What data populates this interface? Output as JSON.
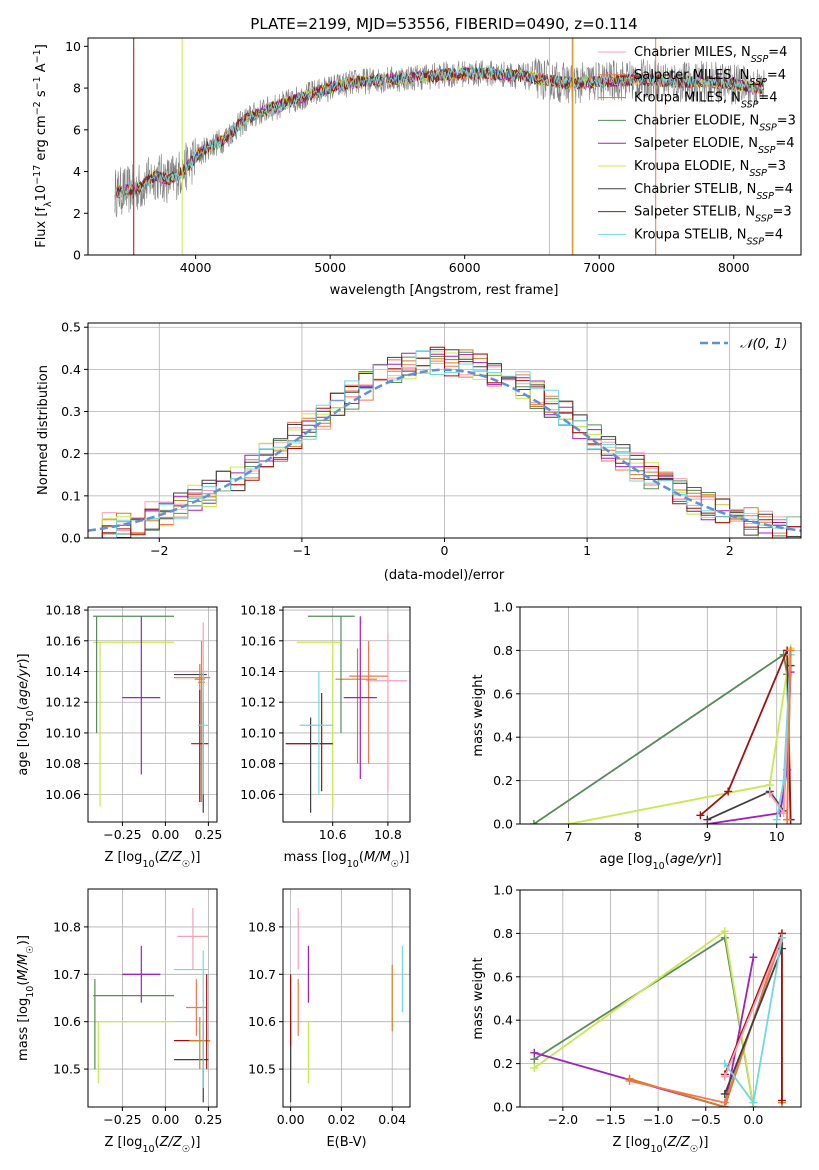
{
  "colors": {
    "chabrier_miles": "#f8a0b8",
    "salpeter_miles": "#f07850",
    "kroupa_miles": "#d08020",
    "chabrier_elodie": "#5a8a5a",
    "salpeter_elodie": "#a020c0",
    "kroupa_elodie": "#c8e850",
    "chabrier_stelib": "#404040",
    "salpeter_stelib": "#a01010",
    "kroupa_stelib": "#70d8e0",
    "gaussian": "#6090d8",
    "data": "#7f7f7f"
  },
  "chart_data": [
    {
      "type": "line",
      "title": "PLATE=2199, MJD=53556, FIBERID=0490, z=0.114",
      "xlabel": "wavelength [Angstrom, rest frame]",
      "ylabel": "Flux [f_λ 10^-17 erg cm^-2 s^-1 A^-1]",
      "xlim": [
        3200,
        8500
      ],
      "ylim": [
        0,
        10.4
      ],
      "xticks": [
        "4000",
        "5000",
        "6000",
        "7000",
        "8000"
      ],
      "yticks": [
        "0",
        "2",
        "4",
        "6",
        "8",
        "10"
      ],
      "grid": false,
      "legend_position": "upper-right",
      "series": [
        {
          "name": "Chabrier MILES, N_SSP=4",
          "color_key": "chabrier_miles"
        },
        {
          "name": "Salpeter MILES, N_SSP=4",
          "color_key": "salpeter_miles"
        },
        {
          "name": "Kroupa MILES, N_SSP=4",
          "color_key": "kroupa_miles"
        },
        {
          "name": "Chabrier ELODIE, N_SSP=3",
          "color_key": "chabrier_elodie"
        },
        {
          "name": "Salpeter ELODIE, N_SSP=4",
          "color_key": "salpeter_elodie"
        },
        {
          "name": "Kroupa ELODIE, N_SSP=3",
          "color_key": "kroupa_elodie"
        },
        {
          "name": "Chabrier STELIB, N_SSP=4",
          "color_key": "chabrier_stelib"
        },
        {
          "name": "Salpeter STELIB, N_SSP=3",
          "color_key": "salpeter_stelib"
        },
        {
          "name": "Kroupa STELIB, N_SSP=4",
          "color_key": "kroupa_stelib"
        }
      ],
      "continuum_wavelength": [
        3400,
        3500,
        3600,
        3700,
        3800,
        3900,
        4000,
        4100,
        4200,
        4300,
        4400,
        4500,
        4600,
        4800,
        5000,
        5200,
        5400,
        5600,
        5800,
        6000,
        6200,
        6400,
        6600,
        6800,
        7000,
        7200,
        7400,
        7600,
        7800,
        8000,
        8200
      ],
      "continuum_flux": [
        3.0,
        3.1,
        3.3,
        3.8,
        3.6,
        4.0,
        4.7,
        5.2,
        5.5,
        6.1,
        6.6,
        6.9,
        7.1,
        7.6,
        8.0,
        8.3,
        8.4,
        8.5,
        8.6,
        8.7,
        8.7,
        8.6,
        8.4,
        8.2,
        8.3,
        8.4,
        8.4,
        8.3,
        8.3,
        8.2,
        8.0
      ]
    },
    {
      "type": "line",
      "xlabel": "(data-model)/error",
      "ylabel": "Normed distribution",
      "xlim": [
        -2.5,
        2.5
      ],
      "ylim": [
        0,
        0.51
      ],
      "xticks": [
        "−2",
        "−1",
        "0",
        "1",
        "2"
      ],
      "yticks": [
        "0.0",
        "0.1",
        "0.2",
        "0.3",
        "0.4",
        "0.5"
      ],
      "grid": true,
      "legend_position": "upper-right",
      "gaussian_label": "𝒩(0, 1)",
      "histogram_bin_width": 0.1
    },
    {
      "type": "scatter",
      "xlabel": "Z [log10(Z/Z☉)]",
      "ylabel": "age [log10(age/yr)]",
      "xlim": [
        -0.45,
        0.3
      ],
      "ylim": [
        10.042,
        10.182
      ],
      "xticks": [
        "−0.25",
        "0.00",
        "0.25"
      ],
      "yticks": [
        "10.06",
        "10.08",
        "10.10",
        "10.12",
        "10.14",
        "10.16",
        "10.18"
      ],
      "grid": true,
      "points": [
        {
          "key": "chabrier_miles",
          "x": 0.22,
          "xerr": 0.0,
          "y": 10.14,
          "ylo": 10.096,
          "yhi": 10.172
        },
        {
          "key": "salpeter_miles",
          "x": 0.21,
          "xerr": 0.02,
          "y": 10.133,
          "ylo": 10.055,
          "yhi": 10.16
        },
        {
          "key": "kroupa_miles",
          "x": 0.2,
          "xerr": 0.03,
          "y": 10.135,
          "ylo": 10.055,
          "yhi": 10.145
        },
        {
          "key": "chabrier_elodie",
          "x": -0.4,
          "xerr": 0.0,
          "y": 10.176,
          "ylo": 10.1,
          "yhi": 10.176
        },
        {
          "key": "salpeter_elodie",
          "x": -0.14,
          "xerr": 0.11,
          "y": 10.123,
          "ylo": 10.073,
          "yhi": 10.176
        },
        {
          "key": "kroupa_elodie",
          "x": -0.38,
          "xerr": 0.0,
          "y": 10.159,
          "ylo": 10.052,
          "yhi": 10.159
        },
        {
          "key": "chabrier_stelib",
          "x": 0.22,
          "xerr": 0.0,
          "y": 10.12,
          "ylo": 10.048,
          "yhi": 10.12
        },
        {
          "key": "salpeter_stelib",
          "x": 0.2,
          "xerr": 0.05,
          "y": 10.093,
          "ylo": 10.055,
          "yhi": 10.128
        },
        {
          "key": "kroupa_stelib",
          "x": 0.22,
          "xerr": 0.03,
          "y": 10.105,
          "ylo": 10.06,
          "yhi": 10.14
        }
      ],
      "hlines": [
        {
          "key": "chabrier_elodie",
          "y": 10.176,
          "x0": -0.42,
          "x1": 0.05
        },
        {
          "key": "kroupa_elodie",
          "y": 10.159,
          "x0": -0.42,
          "x1": 0.05
        },
        {
          "key": "chabrier_miles",
          "y": 10.14,
          "x0": 0.05,
          "x1": 0.25
        },
        {
          "key": "salpeter_miles",
          "y": 10.136,
          "x0": 0.05,
          "x1": 0.26
        },
        {
          "key": "chabrier_stelib",
          "y": 10.138,
          "x0": 0.05,
          "x1": 0.24
        }
      ]
    },
    {
      "type": "scatter",
      "xlabel": "mass [log10(M/M☉)]",
      "xlim": [
        10.42,
        10.88
      ],
      "ylim": [
        10.042,
        10.182
      ],
      "xticks": [
        "10.6",
        "10.8"
      ],
      "yticks": [
        "10.06",
        "10.08",
        "10.10",
        "10.12",
        "10.14",
        "10.16",
        "10.18"
      ],
      "grid": true,
      "points": [
        {
          "key": "chabrier_miles",
          "x": 10.8,
          "y": 10.134,
          "xlo": 10.72,
          "xhi": 10.87,
          "ylo": 10.062,
          "yhi": 10.165
        },
        {
          "key": "salpeter_miles",
          "x": 10.73,
          "y": 10.137,
          "xlo": 10.66,
          "xhi": 10.8,
          "ylo": 10.08,
          "yhi": 10.16
        },
        {
          "key": "kroupa_miles",
          "x": 10.69,
          "y": 10.135,
          "xlo": 10.61,
          "xhi": 10.76,
          "ylo": 10.08,
          "yhi": 10.155
        },
        {
          "key": "chabrier_elodie",
          "x": 10.63,
          "y": 10.176,
          "xlo": 10.51,
          "xhi": 10.68,
          "ylo": 10.1,
          "yhi": 10.176
        },
        {
          "key": "salpeter_elodie",
          "x": 10.7,
          "y": 10.123,
          "xlo": 10.64,
          "xhi": 10.76,
          "ylo": 10.07,
          "yhi": 10.176
        },
        {
          "key": "kroupa_elodie",
          "x": 10.6,
          "y": 10.159,
          "xlo": 10.47,
          "xhi": 10.63,
          "ylo": 10.052,
          "yhi": 10.159
        },
        {
          "key": "chabrier_stelib",
          "x": 10.52,
          "y": 10.093,
          "xlo": 10.43,
          "xhi": 10.6,
          "ylo": 10.048,
          "yhi": 10.11
        },
        {
          "key": "salpeter_stelib",
          "x": 10.56,
          "y": 10.093,
          "xlo": 10.43,
          "xhi": 10.6,
          "ylo": 10.062,
          "yhi": 10.126
        },
        {
          "key": "kroupa_stelib",
          "x": 10.55,
          "y": 10.105,
          "xlo": 10.48,
          "xhi": 10.6,
          "ylo": 10.06,
          "yhi": 10.14
        }
      ]
    },
    {
      "type": "line",
      "xlabel": "age  [log10(age/yr)]",
      "ylabel": "mass weight",
      "xlim": [
        6.3,
        10.35
      ],
      "ylim": [
        0,
        1.0
      ],
      "xticks": [
        "7",
        "8",
        "9",
        "10"
      ],
      "yticks": [
        "0.0",
        "0.2",
        "0.4",
        "0.6",
        "0.8",
        "1.0"
      ],
      "grid": true,
      "series": [
        {
          "key": "chabrier_elodie",
          "x": [
            6.5,
            10.1,
            10.15,
            10.2
          ],
          "y": [
            0.0,
            0.78,
            0.69,
            0.02
          ]
        },
        {
          "key": "kroupa_elodie",
          "x": [
            7.0,
            9.9,
            10.2
          ],
          "y": [
            0.0,
            0.18,
            0.81
          ]
        },
        {
          "key": "salpeter_stelib",
          "x": [
            8.9,
            9.3,
            10.15,
            10.2
          ],
          "y": [
            0.04,
            0.15,
            0.8,
            0.02
          ]
        },
        {
          "key": "chabrier_stelib",
          "x": [
            9.0,
            9.9,
            10.1,
            10.2
          ],
          "y": [
            0.02,
            0.15,
            0.06,
            0.73
          ]
        },
        {
          "key": "salpeter_elodie",
          "x": [
            9.0,
            10.05,
            10.15,
            10.2
          ],
          "y": [
            0.0,
            0.05,
            0.25,
            0.7
          ]
        },
        {
          "key": "chabrier_miles",
          "x": [
            9.9,
            10.1,
            10.2
          ],
          "y": [
            0.14,
            0.05,
            0.78
          ]
        },
        {
          "key": "kroupa_stelib",
          "x": [
            10.0,
            10.1,
            10.2
          ],
          "y": [
            0.02,
            0.2,
            0.78
          ]
        },
        {
          "key": "kroupa_miles",
          "x": [
            10.15,
            10.2
          ],
          "y": [
            0.02,
            0.8
          ]
        },
        {
          "key": "salpeter_miles",
          "x": [
            10.15,
            10.2
          ],
          "y": [
            0.02,
            0.8
          ]
        }
      ]
    },
    {
      "type": "scatter",
      "xlabel": "Z [log10(Z/Z☉)]",
      "ylabel": "mass [log10(M/M☉)]",
      "xlim": [
        -0.45,
        0.3
      ],
      "ylim": [
        10.42,
        10.88
      ],
      "xticks": [
        "−0.25",
        "0.00",
        "0.25"
      ],
      "yticks": [
        "10.5",
        "10.6",
        "10.7",
        "10.8"
      ],
      "grid": true,
      "points": [
        {
          "key": "chabrier_miles",
          "x": 0.16,
          "xerr": 0.09,
          "y": 10.78,
          "ylo": 10.71,
          "yhi": 10.84
        },
        {
          "key": "salpeter_miles",
          "x": 0.18,
          "xerr": 0.06,
          "y": 10.63,
          "ylo": 10.57,
          "yhi": 10.69
        },
        {
          "key": "kroupa_miles",
          "x": 0.2,
          "xerr": 0.06,
          "y": 10.56,
          "ylo": 10.5,
          "yhi": 10.61
        },
        {
          "key": "chabrier_elodie",
          "x": -0.41,
          "xerr": 0.0,
          "y": 10.66,
          "ylo": 10.5,
          "yhi": 10.69
        },
        {
          "key": "salpeter_elodie",
          "x": -0.14,
          "xerr": 0.11,
          "y": 10.7,
          "ylo": 10.64,
          "yhi": 10.76
        },
        {
          "key": "kroupa_elodie",
          "x": -0.39,
          "xerr": 0.0,
          "y": 10.6,
          "ylo": 10.47,
          "yhi": 10.6
        },
        {
          "key": "chabrier_stelib",
          "x": 0.22,
          "xerr": 0.0,
          "y": 10.52,
          "ylo": 10.43,
          "yhi": 10.6
        },
        {
          "key": "salpeter_stelib",
          "x": 0.24,
          "xerr": 0.0,
          "y": 10.56,
          "ylo": 10.5,
          "yhi": 10.7
        },
        {
          "key": "kroupa_stelib",
          "x": 0.22,
          "xerr": 0.0,
          "y": 10.71,
          "ylo": 10.46,
          "yhi": 10.75
        }
      ],
      "hlines": [
        {
          "key": "chabrier_elodie",
          "y": 10.655,
          "x0": -0.42,
          "x1": 0.05
        },
        {
          "key": "kroupa_elodie",
          "y": 10.6,
          "x0": -0.42,
          "x1": 0.05
        },
        {
          "key": "salpeter_elodie",
          "y": 10.7,
          "x0": -0.25,
          "x1": -0.03
        },
        {
          "key": "kroupa_stelib",
          "y": 10.71,
          "x0": 0.05,
          "x1": 0.25
        },
        {
          "key": "chabrier_stelib",
          "y": 10.52,
          "x0": 0.05,
          "x1": 0.25
        },
        {
          "key": "salpeter_stelib",
          "y": 10.56,
          "x0": 0.05,
          "x1": 0.26
        }
      ]
    },
    {
      "type": "scatter",
      "xlabel": "E(B-V)",
      "xlim": [
        -0.003,
        0.047
      ],
      "ylim": [
        10.42,
        10.88
      ],
      "xticks": [
        "0.00",
        "0.02",
        "0.04"
      ],
      "yticks": [
        "10.5",
        "10.6",
        "10.7",
        "10.8"
      ],
      "grid": true,
      "points": [
        {
          "key": "chabrier_miles",
          "x": 0.003,
          "y": 10.78,
          "ylo": 10.71,
          "yhi": 10.84
        },
        {
          "key": "salpeter_miles",
          "x": 0.003,
          "y": 10.63,
          "ylo": 10.57,
          "yhi": 10.69
        },
        {
          "key": "kroupa_miles",
          "x": 0.04,
          "y": 10.65,
          "ylo": 10.58,
          "yhi": 10.72
        },
        {
          "key": "chabrier_elodie",
          "x": 0.0,
          "y": 10.66,
          "ylo": 10.5,
          "yhi": 10.69
        },
        {
          "key": "salpeter_elodie",
          "x": 0.007,
          "y": 10.7,
          "ylo": 10.64,
          "yhi": 10.76
        },
        {
          "key": "kroupa_elodie",
          "x": 0.007,
          "y": 10.6,
          "ylo": 10.47,
          "yhi": 10.6
        },
        {
          "key": "chabrier_stelib",
          "x": 0.0,
          "y": 10.52,
          "ylo": 10.43,
          "yhi": 10.6
        },
        {
          "key": "salpeter_stelib",
          "x": 0.0,
          "y": 10.63,
          "ylo": 10.55,
          "yhi": 10.7
        },
        {
          "key": "kroupa_stelib",
          "x": 0.044,
          "y": 10.69,
          "ylo": 10.62,
          "yhi": 10.76
        }
      ]
    },
    {
      "type": "line",
      "xlabel": "Z [log10(Z/Z☉)]",
      "ylabel": "mass weight",
      "xlim": [
        -2.45,
        0.5
      ],
      "ylim": [
        0,
        1.0
      ],
      "xticks": [
        "−2.0",
        "−1.5",
        "−1.0",
        "−0.5",
        "0.0"
      ],
      "yticks": [
        "0.0",
        "0.2",
        "0.4",
        "0.6",
        "0.8",
        "1.0"
      ],
      "grid": true,
      "series": [
        {
          "key": "chabrier_elodie",
          "x": [
            -2.3,
            -0.3,
            0.0
          ],
          "y": [
            0.22,
            0.78,
            0.0
          ]
        },
        {
          "key": "kroupa_elodie",
          "x": [
            -2.3,
            -0.3,
            0.0
          ],
          "y": [
            0.18,
            0.81,
            0.0
          ]
        },
        {
          "key": "salpeter_elodie",
          "x": [
            -2.3,
            -0.3,
            0.0,
            -0.3
          ],
          "y": [
            0.25,
            0.0,
            0.69,
            0.0
          ]
        },
        {
          "key": "kroupa_miles",
          "x": [
            -1.3,
            -0.3,
            0.3,
            0.3
          ],
          "y": [
            0.13,
            0.0,
            0.8,
            0.02
          ]
        },
        {
          "key": "salpeter_miles",
          "x": [
            -1.3,
            -0.3,
            0.3
          ],
          "y": [
            0.12,
            0.02,
            0.78
          ]
        },
        {
          "key": "salpeter_stelib",
          "x": [
            -0.3,
            0.3,
            0.3
          ],
          "y": [
            0.15,
            0.8,
            0.03
          ]
        },
        {
          "key": "chabrier_stelib",
          "x": [
            -0.3,
            0.3
          ],
          "y": [
            0.06,
            0.73
          ]
        },
        {
          "key": "chabrier_miles",
          "x": [
            -0.3,
            0.3
          ],
          "y": [
            0.14,
            0.78
          ]
        },
        {
          "key": "kroupa_stelib",
          "x": [
            -0.3,
            0.0,
            0.3
          ],
          "y": [
            0.2,
            0.02,
            0.78
          ]
        }
      ]
    }
  ]
}
